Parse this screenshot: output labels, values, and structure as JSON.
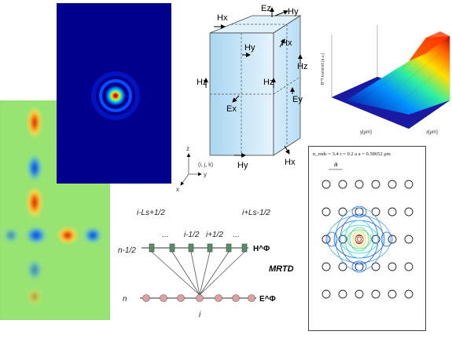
{
  "field_map": {
    "caption": ""
  },
  "beam_spot": {
    "caption": ""
  },
  "yee_cell": {
    "labels": {
      "hx_top_left": "Hx",
      "ez_top": "Ez",
      "hy_top_right": "Hy",
      "hy_inner": "Hy",
      "hx_inner": "Hx",
      "hz_right": "Hz",
      "hz_left": "Hz",
      "hz_center": "Hz",
      "ey_right": "Ey",
      "ex": "Ex",
      "hy_bottom": "Hy",
      "hx_bottom": "Hx"
    },
    "origin_label": "(i, j, k)",
    "axes": {
      "z": "z",
      "y": "y",
      "x": "x"
    }
  },
  "surface_plot": {
    "zlabel": "B^T transmit [a.u.]",
    "xlabel": "x[μm]",
    "ylabel": "y[μm]"
  },
  "mrtd": {
    "top_labels": [
      "i-Ls+1/2",
      "...",
      "i-1/2",
      "i+1/2",
      "...",
      "i+Ls-1/2"
    ],
    "row_top": "n-1/2",
    "row_bottom": "n",
    "h_label": "H^Φ",
    "e_label": "E^Φ",
    "center_index": "i",
    "title": "MRTD"
  },
  "photonic_crystal": {
    "header": "n_rods = 3.4    r = 0.2 a    a = 0.58652 μm",
    "lattice_label": "a"
  }
}
